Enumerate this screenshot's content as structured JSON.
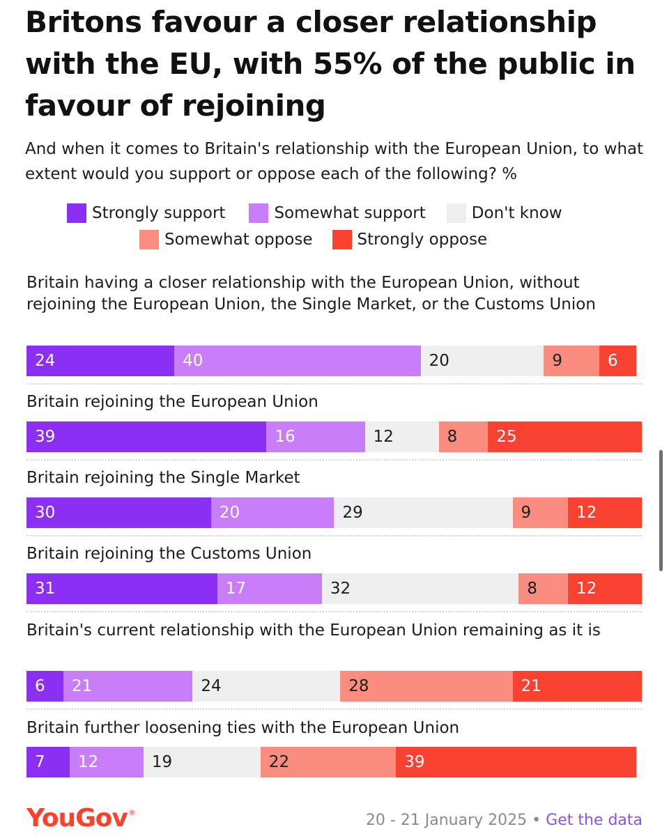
{
  "title": "Britons favour a closer relationship with the EU, with 55% of the public in favour of rejoining",
  "subtitle": "And when it comes to Britain's relationship with the European Union, to what extent would you support or oppose each of the following? %",
  "legend": [
    {
      "label": "Strongly support",
      "color": "#8b2ff2"
    },
    {
      "label": "Somewhat support",
      "color": "#c87ef8"
    },
    {
      "label": "Don't know",
      "color": "#efefef"
    },
    {
      "label": "Somewhat oppose",
      "color": "#fb8c80"
    },
    {
      "label": "Strongly oppose",
      "color": "#fa4233"
    }
  ],
  "chart_data": {
    "type": "bar",
    "stacked": true,
    "orientation": "horizontal",
    "title": "Britons favour a closer relationship with the EU, with 55% of the public in favour of rejoining",
    "subtitle": "And when it comes to Britain's relationship with the European Union, to what extent would you support or oppose each of the following? %",
    "categories": [
      "Britain having a closer relationship with the European Union, without rejoining the European Union, the Single Market, or the Customs Union",
      "Britain rejoining the European Union",
      "Britain rejoining the Single Market",
      "Britain rejoining the Customs Union",
      "Britain's current relationship with the European Union remaining as it is",
      "Britain further loosening ties with the European Union"
    ],
    "series": [
      {
        "name": "Strongly support",
        "color": "#8b2ff2",
        "values": [
          24,
          39,
          30,
          31,
          6,
          7
        ]
      },
      {
        "name": "Somewhat support",
        "color": "#c87ef8",
        "values": [
          40,
          16,
          20,
          17,
          21,
          12
        ]
      },
      {
        "name": "Don't know",
        "color": "#efefef",
        "values": [
          20,
          12,
          29,
          32,
          24,
          19
        ]
      },
      {
        "name": "Somewhat oppose",
        "color": "#fb8c80",
        "values": [
          9,
          8,
          9,
          8,
          28,
          22
        ]
      },
      {
        "name": "Strongly oppose",
        "color": "#fa4233",
        "values": [
          6,
          25,
          12,
          12,
          21,
          39
        ]
      }
    ],
    "legend_position": "top",
    "grid": false
  },
  "footer": {
    "brand": "YouGov",
    "date": "20 - 21 January 2025",
    "bullet": "•",
    "link": "Get the data"
  }
}
